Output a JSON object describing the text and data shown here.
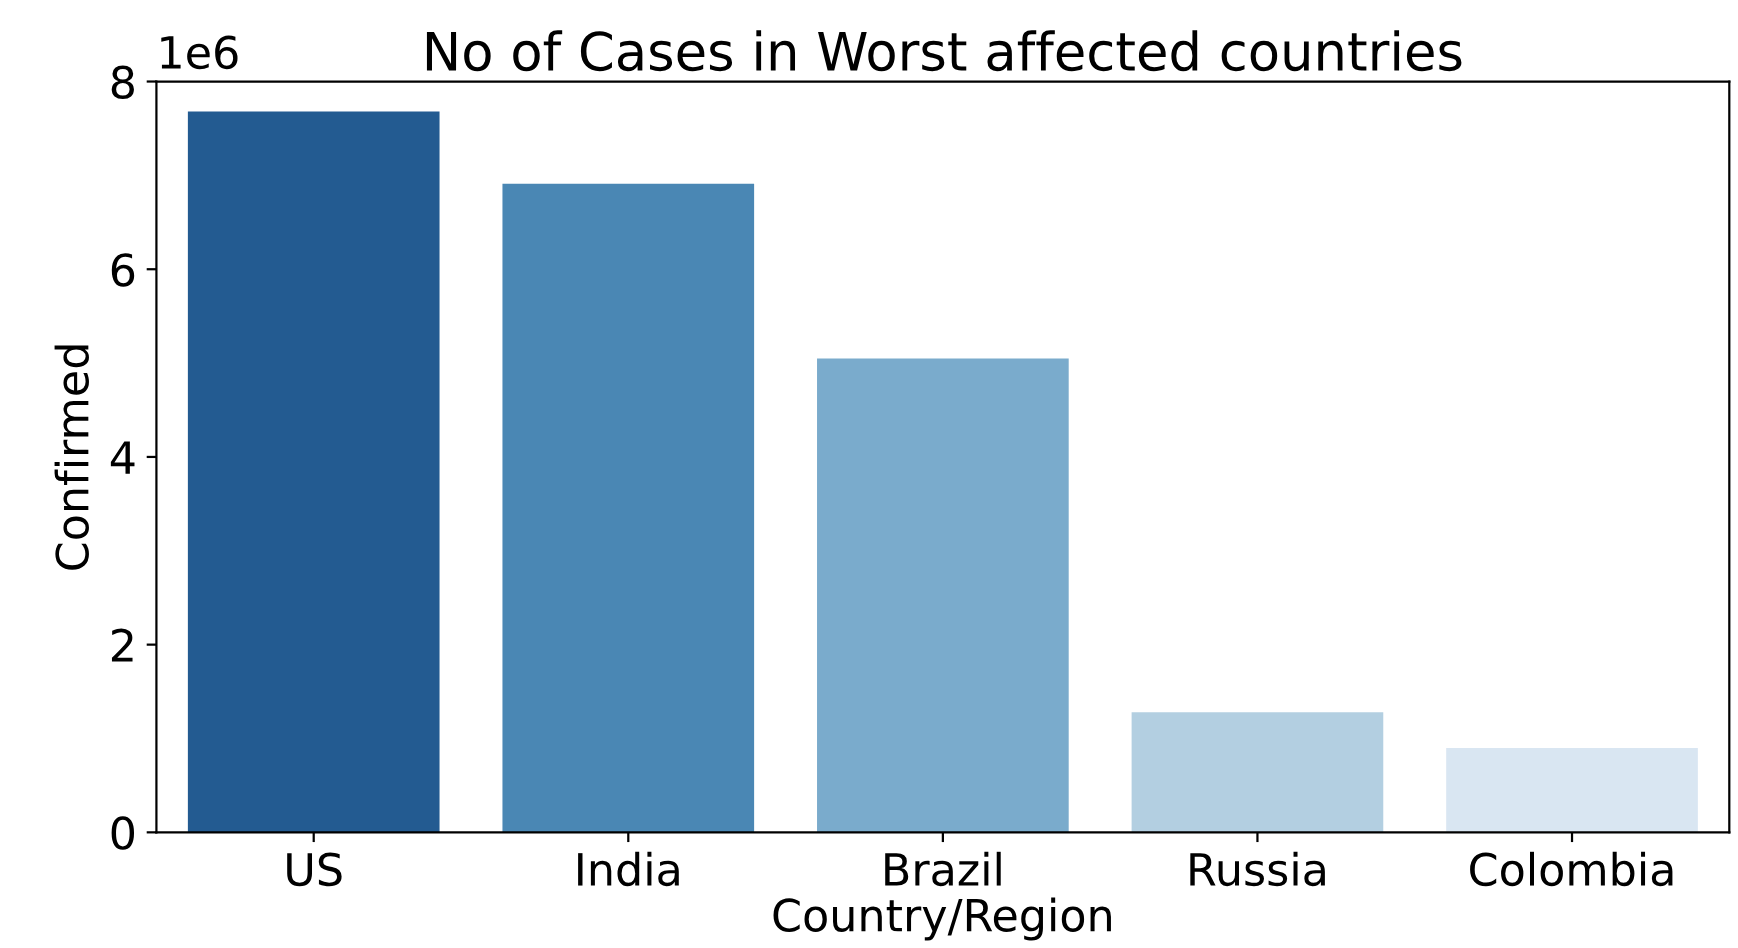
{
  "chart_data": {
    "type": "bar",
    "title": "No of Cases in Worst affected countries",
    "xlabel": "Country/Region",
    "ylabel": "Confirmed",
    "categories": [
      "US",
      "India",
      "Brazil",
      "Russia",
      "Colombia"
    ],
    "values": [
      7.68,
      6.91,
      5.05,
      1.28,
      0.9
    ],
    "colors": [
      "#235b91",
      "#4a87b4",
      "#7aabcc",
      "#b3cfe1",
      "#d9e6f2"
    ],
    "ylim": [
      0,
      8
    ],
    "yticks": [
      0,
      2,
      4,
      6,
      8
    ],
    "annotations": [
      "1e6"
    ],
    "grid": false
  }
}
